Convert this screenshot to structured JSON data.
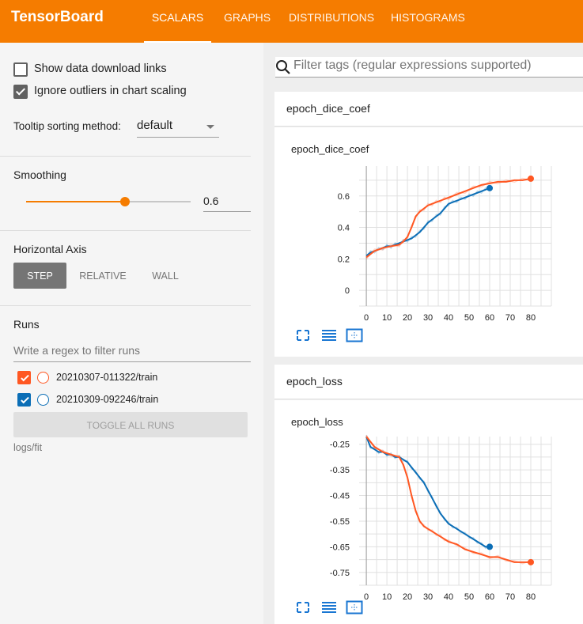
{
  "header": {
    "brand": "TensorBoard",
    "tabs": [
      "SCALARS",
      "GRAPHS",
      "DISTRIBUTIONS",
      "HISTOGRAMS"
    ],
    "active_tab": "SCALARS",
    "color": "#f57c00"
  },
  "sidebar": {
    "show_download_label": "Show data download links",
    "show_download_checked": false,
    "ignore_outliers_label": "Ignore outliers in chart scaling",
    "ignore_outliers_checked": true,
    "tooltip_label": "Tooltip sorting method:",
    "tooltip_value": "default",
    "smoothing_title": "Smoothing",
    "smoothing_value": "0.6",
    "smoothing_fraction": 0.6,
    "axis_title": "Horizontal Axis",
    "axis_options": [
      "STEP",
      "RELATIVE",
      "WALL"
    ],
    "axis_selected": "STEP",
    "runs_title": "Runs",
    "runs_filter_placeholder": "Write a regex to filter runs",
    "runs": [
      {
        "name": "20210307-011322/train",
        "color": "#ff5722",
        "checked": true
      },
      {
        "name": "20210309-092246/train",
        "color": "#0b6eb6",
        "checked": true
      }
    ],
    "toggle_all_label": "TOGGLE ALL RUNS",
    "logdir": "logs/fit"
  },
  "main": {
    "filter_placeholder": "Filter tags (regular expressions supported)",
    "icons": [
      "fullscreen-icon",
      "lines-icon",
      "fit-domain-icon"
    ]
  },
  "chart_data": [
    {
      "type": "line",
      "group": "epoch_dice_coef",
      "title": "epoch_dice_coef",
      "xlim": [
        -3.5,
        90
      ],
      "ylim": [
        -0.1,
        0.79
      ],
      "xticks": [
        0,
        10,
        20,
        30,
        40,
        50,
        60,
        70,
        80
      ],
      "yticks": [
        0,
        0.2,
        0.4,
        0.6
      ],
      "ytick_labels": [
        "0",
        "0.2",
        "0.4",
        "0.6"
      ],
      "grid": true,
      "series": [
        {
          "color": "#0b6eb6",
          "x": [
            0,
            2,
            4,
            6,
            8,
            10,
            12,
            14,
            16,
            18,
            20,
            22,
            24,
            26,
            28,
            30,
            32,
            34,
            36,
            38,
            40,
            42,
            44,
            46,
            48,
            50,
            52,
            54,
            56,
            58,
            60
          ],
          "y": [
            0.22,
            0.24,
            0.25,
            0.26,
            0.27,
            0.28,
            0.28,
            0.29,
            0.3,
            0.31,
            0.32,
            0.33,
            0.35,
            0.37,
            0.4,
            0.43,
            0.45,
            0.47,
            0.49,
            0.52,
            0.55,
            0.56,
            0.57,
            0.58,
            0.59,
            0.6,
            0.61,
            0.62,
            0.63,
            0.64,
            0.65
          ]
        },
        {
          "color": "#ff5722",
          "x": [
            0,
            4,
            8,
            12,
            16,
            18,
            20,
            22,
            24,
            26,
            28,
            30,
            32,
            34,
            36,
            38,
            40,
            44,
            48,
            52,
            56,
            60,
            64,
            68,
            72,
            76,
            80
          ],
          "y": [
            0.21,
            0.25,
            0.27,
            0.28,
            0.29,
            0.31,
            0.34,
            0.4,
            0.47,
            0.5,
            0.52,
            0.54,
            0.55,
            0.56,
            0.57,
            0.58,
            0.59,
            0.61,
            0.63,
            0.65,
            0.67,
            0.68,
            0.69,
            0.69,
            0.7,
            0.7,
            0.71
          ]
        }
      ]
    },
    {
      "type": "line",
      "group": "epoch_loss",
      "title": "epoch_loss",
      "xlim": [
        -3.5,
        90
      ],
      "ylim": [
        -0.8,
        -0.22
      ],
      "xticks": [
        0,
        10,
        20,
        30,
        40,
        50,
        60,
        70,
        80
      ],
      "yticks": [
        -0.25,
        -0.35,
        -0.45,
        -0.55,
        -0.65,
        -0.75
      ],
      "ytick_labels": [
        "-0.25",
        "-0.35",
        "-0.45",
        "-0.55",
        "-0.65",
        "-0.75"
      ],
      "grid": true,
      "series": [
        {
          "color": "#0b6eb6",
          "x": [
            0,
            2,
            4,
            6,
            8,
            10,
            12,
            14,
            16,
            18,
            20,
            22,
            24,
            26,
            28,
            30,
            32,
            34,
            36,
            38,
            40,
            42,
            44,
            46,
            48,
            50,
            52,
            54,
            56,
            58,
            60
          ],
          "y": [
            -0.22,
            -0.26,
            -0.27,
            -0.28,
            -0.28,
            -0.29,
            -0.29,
            -0.3,
            -0.3,
            -0.31,
            -0.32,
            -0.34,
            -0.36,
            -0.38,
            -0.4,
            -0.43,
            -0.46,
            -0.49,
            -0.52,
            -0.54,
            -0.56,
            -0.57,
            -0.58,
            -0.59,
            -0.6,
            -0.61,
            -0.62,
            -0.63,
            -0.64,
            -0.65,
            -0.65
          ]
        },
        {
          "color": "#ff5722",
          "x": [
            0,
            4,
            8,
            12,
            16,
            18,
            20,
            22,
            24,
            26,
            28,
            30,
            32,
            34,
            36,
            38,
            40,
            44,
            48,
            52,
            56,
            60,
            64,
            68,
            72,
            76,
            80
          ],
          "y": [
            -0.22,
            -0.26,
            -0.28,
            -0.29,
            -0.3,
            -0.33,
            -0.38,
            -0.45,
            -0.51,
            -0.55,
            -0.57,
            -0.58,
            -0.59,
            -0.6,
            -0.61,
            -0.62,
            -0.63,
            -0.64,
            -0.66,
            -0.67,
            -0.68,
            -0.69,
            -0.69,
            -0.7,
            -0.71,
            -0.71,
            -0.71
          ]
        }
      ]
    }
  ]
}
